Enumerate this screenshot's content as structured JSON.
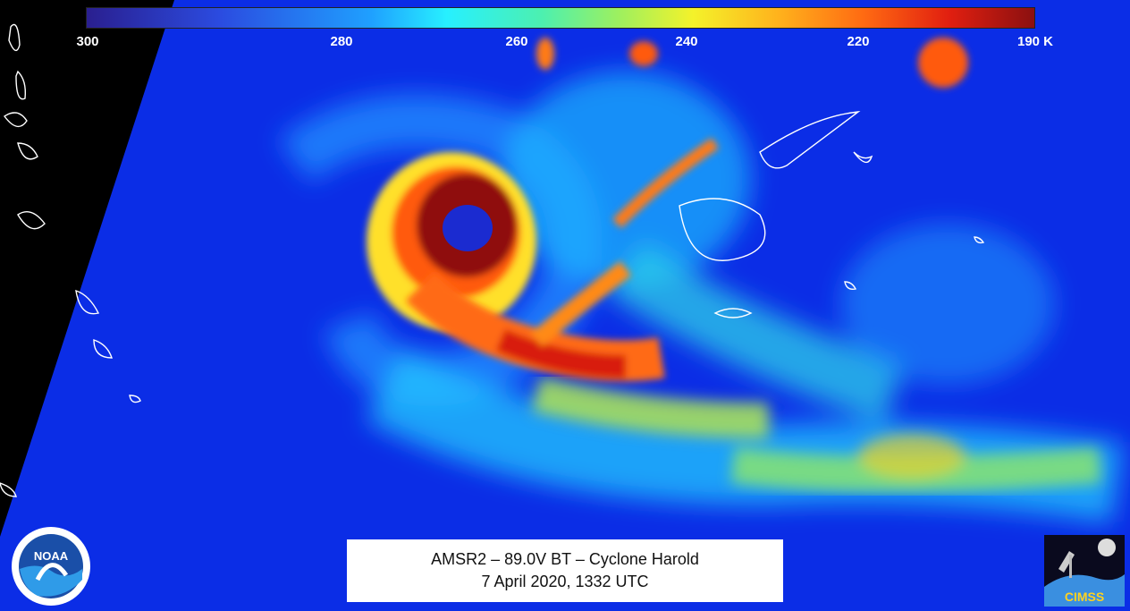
{
  "colorbar": {
    "ticks": [
      "300",
      "280",
      "260",
      "240",
      "220",
      "190 K"
    ],
    "colors": [
      "#2a1f8f",
      "#2b4be0",
      "#1fa0ff",
      "#27f0ff",
      "#4cf0b0",
      "#9cf060",
      "#f4f22a",
      "#ffb21c",
      "#ff6a12",
      "#e11f10",
      "#8b1010"
    ]
  },
  "caption": {
    "line1": "AMSR2 – 89.0V BT – Cyclone Harold",
    "line2": "7 April 2020, 1332 UTC"
  },
  "logos": {
    "noaa": {
      "text": "NOAA",
      "icon": "noaa-logo-icon"
    },
    "cimss": {
      "text": "CIMSS",
      "icon": "cimss-logo-icon"
    }
  }
}
